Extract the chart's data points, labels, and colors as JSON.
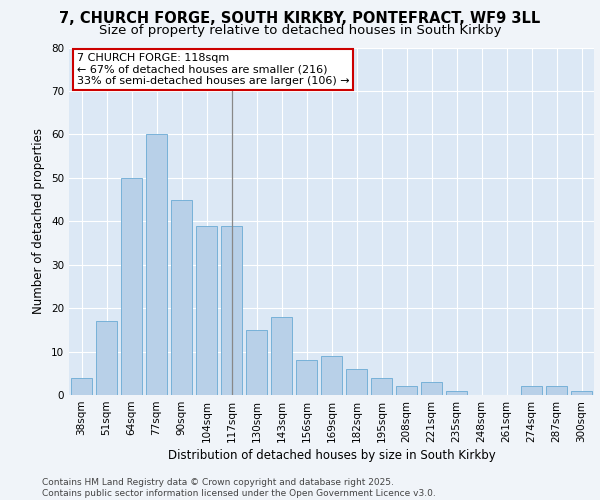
{
  "title1": "7, CHURCH FORGE, SOUTH KIRKBY, PONTEFRACT, WF9 3LL",
  "title2": "Size of property relative to detached houses in South Kirkby",
  "xlabel": "Distribution of detached houses by size in South Kirkby",
  "ylabel": "Number of detached properties",
  "categories": [
    "38sqm",
    "51sqm",
    "64sqm",
    "77sqm",
    "90sqm",
    "104sqm",
    "117sqm",
    "130sqm",
    "143sqm",
    "156sqm",
    "169sqm",
    "182sqm",
    "195sqm",
    "208sqm",
    "221sqm",
    "235sqm",
    "248sqm",
    "261sqm",
    "274sqm",
    "287sqm",
    "300sqm"
  ],
  "values": [
    4,
    17,
    50,
    60,
    45,
    39,
    39,
    15,
    18,
    8,
    9,
    6,
    4,
    2,
    3,
    1,
    0,
    0,
    2,
    2,
    1
  ],
  "bar_color": "#b8d0e8",
  "bar_edge_color": "#6aaad4",
  "vline_x": 6,
  "vline_color": "#888888",
  "annotation_text": "7 CHURCH FORGE: 118sqm\n← 67% of detached houses are smaller (216)\n33% of semi-detached houses are larger (106) →",
  "annotation_box_color": "#ffffff",
  "annotation_box_edge": "#cc0000",
  "background_color": "#dce8f5",
  "grid_color": "#ffffff",
  "ylim": [
    0,
    80
  ],
  "yticks": [
    0,
    10,
    20,
    30,
    40,
    50,
    60,
    70,
    80
  ],
  "fig_background": "#f0f4f9",
  "footer_text": "Contains HM Land Registry data © Crown copyright and database right 2025.\nContains public sector information licensed under the Open Government Licence v3.0.",
  "title_fontsize": 10.5,
  "subtitle_fontsize": 9.5,
  "axis_label_fontsize": 8.5,
  "tick_fontsize": 7.5,
  "annotation_fontsize": 8,
  "footer_fontsize": 6.5
}
